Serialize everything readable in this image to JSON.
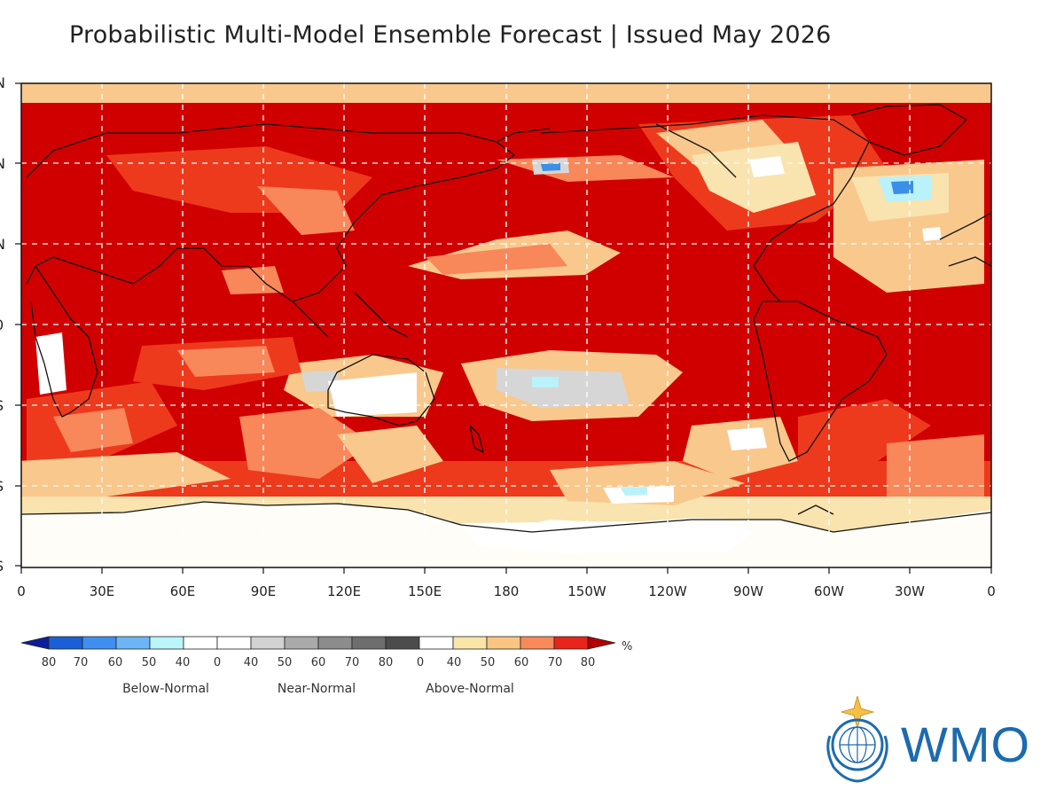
{
  "title": "Probabilistic Multi-Model Ensemble Forecast | Issued May 2026",
  "map": {
    "lat_ticks": [
      "N",
      "N",
      "N",
      "0",
      "S",
      "S",
      "S"
    ],
    "lon_labels": [
      "0",
      "30E",
      "60E",
      "90E",
      "120E",
      "150E",
      "180",
      "150W",
      "120W",
      "90W",
      "60W",
      "30W",
      "0"
    ],
    "colors": {
      "deep_red": "#d10000",
      "red": "#ee3a1c",
      "orange": "#f8875a",
      "light_orange": "#f9c88d",
      "tan": "#f9e3ae",
      "white": "#ffffff",
      "grey": "#d6d6d6",
      "light_blue": "#b9f2fb",
      "blue": "#3b8fe6",
      "coast": "#111111",
      "grid": "#ffffff"
    }
  },
  "colorbar": {
    "numbers": [
      "80",
      "70",
      "60",
      "50",
      "40",
      "0",
      "40",
      "50",
      "60",
      "70",
      "80",
      "0",
      "40",
      "50",
      "60",
      "70",
      "80"
    ],
    "unit": "%",
    "groups": [
      "Below-Normal",
      "Near-Normal",
      "Above-Normal"
    ],
    "segment_colors": [
      "#1a5fd6",
      "#3f8ff0",
      "#6cb6f7",
      "#b9f5fb",
      "#ffffff",
      "#ffffff",
      "#d2d2d2",
      "#aaaaaa",
      "#8c8c8c",
      "#6e6e6e",
      "#4c4c4c",
      "#ffffff",
      "#f8e5a8",
      "#f9c581",
      "#f88a5a",
      "#e8241b"
    ],
    "end_colors": {
      "left": "#0b1f9c",
      "right": "#b40000"
    }
  },
  "logo": {
    "text": "WMO",
    "name": "wmo-logo"
  }
}
